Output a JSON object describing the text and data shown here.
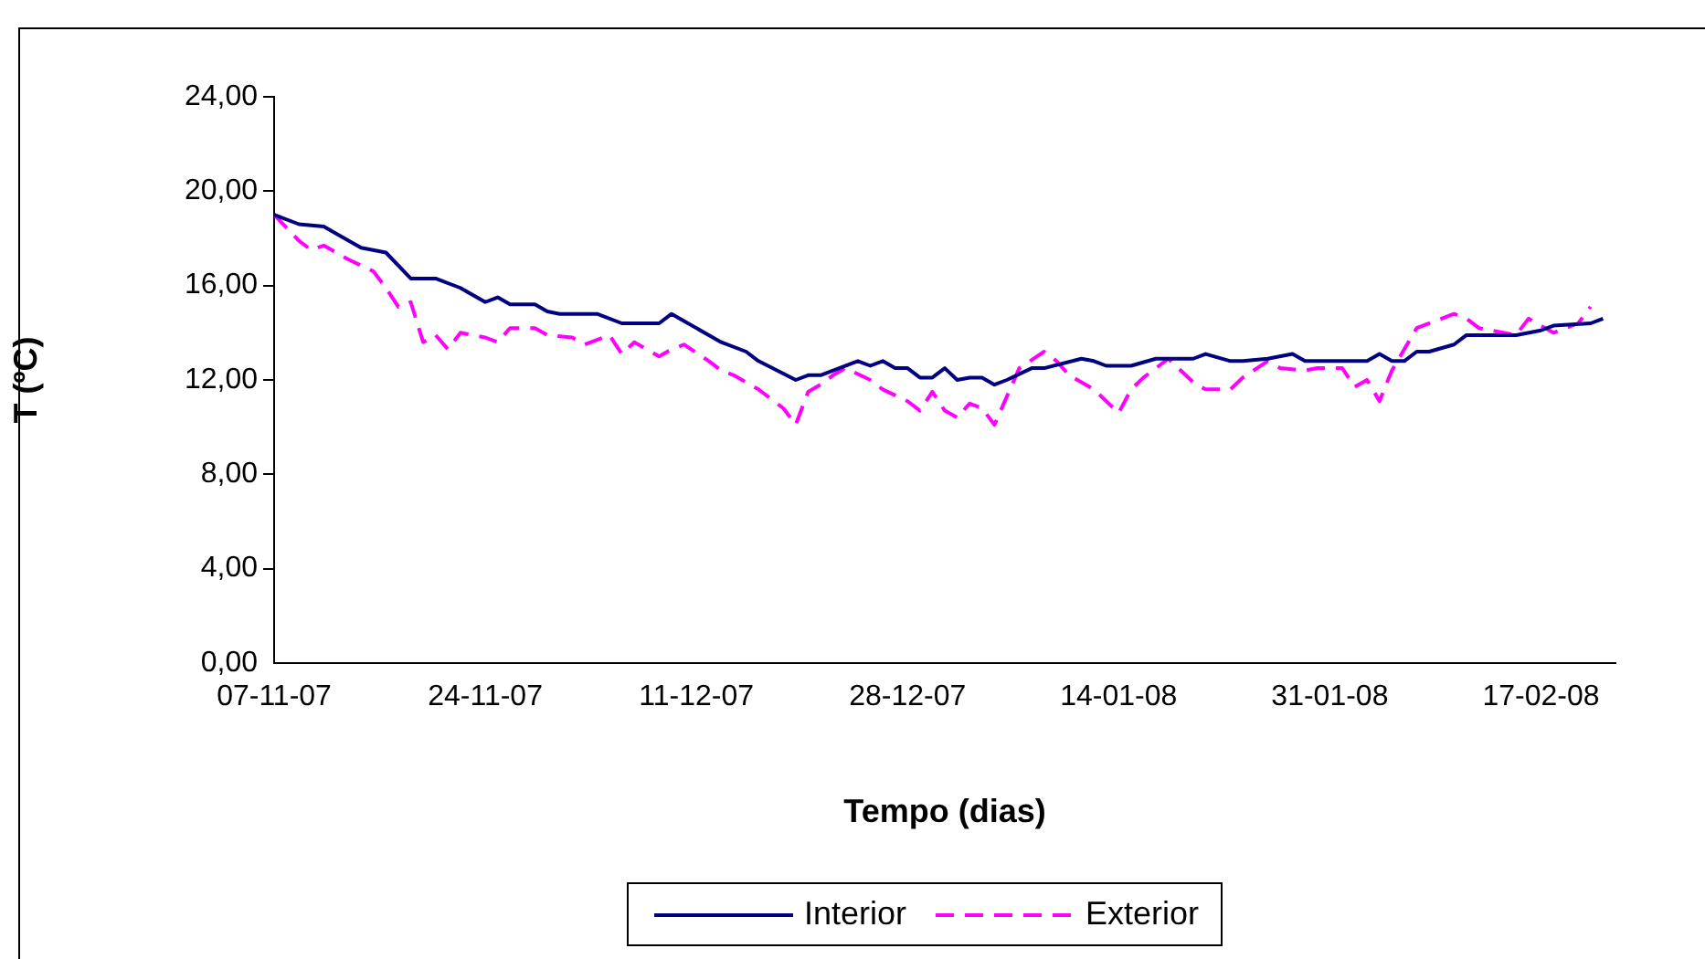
{
  "chart_data": {
    "type": "line",
    "xlabel": "Tempo (dias)",
    "ylabel": "T (ºC)",
    "legend": "bottom",
    "marker": "none",
    "xlim": [
      "2007-11-07",
      "2008-02-23"
    ],
    "xticks": [
      {
        "value": "2007-11-07",
        "label": "07-11-07"
      },
      {
        "value": "2007-11-24",
        "label": "24-11-07"
      },
      {
        "value": "2007-12-11",
        "label": "11-12-07"
      },
      {
        "value": "2007-12-28",
        "label": "28-12-07"
      },
      {
        "value": "2008-01-14",
        "label": "14-01-08"
      },
      {
        "value": "2008-01-31",
        "label": "31-01-08"
      },
      {
        "value": "2008-02-17",
        "label": "17-02-08"
      }
    ],
    "ylim": [
      0,
      24
    ],
    "yticks": [
      {
        "value": 0,
        "label": "0,00"
      },
      {
        "value": 4,
        "label": "4,00"
      },
      {
        "value": 8,
        "label": "8,00"
      },
      {
        "value": 12,
        "label": "12,00"
      },
      {
        "value": 16,
        "label": "16,00"
      },
      {
        "value": 20,
        "label": "20,00"
      },
      {
        "value": 24,
        "label": "24,00"
      }
    ],
    "series": [
      {
        "name": "Interior",
        "color": "#000080",
        "line_style": "solid",
        "x": [
          "2007-11-07",
          "2007-11-09",
          "2007-11-11",
          "2007-11-14",
          "2007-11-16",
          "2007-11-18",
          "2007-11-20",
          "2007-11-22",
          "2007-11-24",
          "2007-11-25",
          "2007-11-26",
          "2007-11-28",
          "2007-11-29",
          "2007-11-30",
          "2007-12-03",
          "2007-12-05",
          "2007-12-08",
          "2007-12-09",
          "2007-12-10",
          "2007-12-12",
          "2007-12-13",
          "2007-12-15",
          "2007-12-16",
          "2007-12-19",
          "2007-12-20",
          "2007-12-21",
          "2007-12-24",
          "2007-12-25",
          "2007-12-26",
          "2007-12-27",
          "2007-12-28",
          "2007-12-29",
          "2007-12-30",
          "2007-12-31",
          "2008-01-01",
          "2008-01-02",
          "2008-01-03",
          "2008-01-04",
          "2008-01-05",
          "2008-01-07",
          "2008-01-08",
          "2008-01-11",
          "2008-01-12",
          "2008-01-13",
          "2008-01-15",
          "2008-01-17",
          "2008-01-20",
          "2008-01-21",
          "2008-01-23",
          "2008-01-24",
          "2008-01-26",
          "2008-01-28",
          "2008-01-29",
          "2008-02-03",
          "2008-02-04",
          "2008-02-05",
          "2008-02-06",
          "2008-02-07",
          "2008-02-08",
          "2008-02-10",
          "2008-02-11",
          "2008-02-15",
          "2008-02-17",
          "2008-02-18",
          "2008-02-21",
          "2008-02-22"
        ],
        "values": [
          19.0,
          18.6,
          18.5,
          17.6,
          17.4,
          16.3,
          16.3,
          15.9,
          15.3,
          15.5,
          15.2,
          15.2,
          14.9,
          14.8,
          14.8,
          14.4,
          14.4,
          14.8,
          14.5,
          13.9,
          13.6,
          13.2,
          12.8,
          12.0,
          12.2,
          12.2,
          12.8,
          12.6,
          12.8,
          12.5,
          12.5,
          12.1,
          12.1,
          12.5,
          12.0,
          12.1,
          12.1,
          11.8,
          12.0,
          12.5,
          12.5,
          12.9,
          12.8,
          12.6,
          12.6,
          12.9,
          12.9,
          13.1,
          12.8,
          12.8,
          12.9,
          13.1,
          12.8,
          12.8,
          13.1,
          12.8,
          12.8,
          13.2,
          13.2,
          13.5,
          13.9,
          13.9,
          14.1,
          14.3,
          14.4,
          14.6
        ]
      },
      {
        "name": "Exterior",
        "color": "#ff00ff",
        "line_style": "dashed",
        "x": [
          "2007-11-07",
          "2007-11-09",
          "2007-11-10",
          "2007-11-11",
          "2007-11-13",
          "2007-11-15",
          "2007-11-16",
          "2007-11-17",
          "2007-11-18",
          "2007-11-19",
          "2007-11-20",
          "2007-11-21",
          "2007-11-22",
          "2007-11-24",
          "2007-11-25",
          "2007-11-26",
          "2007-11-28",
          "2007-11-29",
          "2007-12-01",
          "2007-12-02",
          "2007-12-04",
          "2007-12-05",
          "2007-12-06",
          "2007-12-08",
          "2007-12-09",
          "2007-12-10",
          "2007-12-12",
          "2007-12-13",
          "2007-12-14",
          "2007-12-16",
          "2007-12-18",
          "2007-12-19",
          "2007-12-20",
          "2007-12-21",
          "2007-12-22",
          "2007-12-23",
          "2007-12-25",
          "2007-12-26",
          "2007-12-28",
          "2007-12-29",
          "2007-12-30",
          "2007-12-31",
          "2008-01-01",
          "2008-01-02",
          "2008-01-03",
          "2008-01-04",
          "2008-01-05",
          "2008-01-06",
          "2008-01-08",
          "2008-01-09",
          "2008-01-10",
          "2008-01-12",
          "2008-01-14",
          "2008-01-15",
          "2008-01-16",
          "2008-01-18",
          "2008-01-20",
          "2008-01-21",
          "2008-01-23",
          "2008-01-24",
          "2008-01-26",
          "2008-01-27",
          "2008-01-29",
          "2008-01-30",
          "2008-02-01",
          "2008-02-02",
          "2008-02-03",
          "2008-02-04",
          "2008-02-05",
          "2008-02-07",
          "2008-02-10",
          "2008-02-11",
          "2008-02-12",
          "2008-02-13",
          "2008-02-15",
          "2008-02-16",
          "2008-02-18",
          "2008-02-20",
          "2008-02-21"
        ],
        "values": [
          19.0,
          17.9,
          17.5,
          17.7,
          17.1,
          16.6,
          15.9,
          15.1,
          15.3,
          13.6,
          13.9,
          13.3,
          14.0,
          13.8,
          13.6,
          14.2,
          14.2,
          13.9,
          13.8,
          13.5,
          13.9,
          13.1,
          13.6,
          13.0,
          13.3,
          13.5,
          12.8,
          12.4,
          12.2,
          11.6,
          10.8,
          10.1,
          11.5,
          11.8,
          12.2,
          12.5,
          12.0,
          11.6,
          11.1,
          10.7,
          11.5,
          10.7,
          10.4,
          11.0,
          10.8,
          10.1,
          11.3,
          12.5,
          13.2,
          12.8,
          12.2,
          11.6,
          10.6,
          11.6,
          12.1,
          12.9,
          11.9,
          11.6,
          11.6,
          12.1,
          12.8,
          12.5,
          12.4,
          12.5,
          12.5,
          11.7,
          12.0,
          11.1,
          12.4,
          14.2,
          14.8,
          14.6,
          14.2,
          14.1,
          13.9,
          14.6,
          14.0,
          14.4,
          15.1
        ]
      }
    ]
  }
}
